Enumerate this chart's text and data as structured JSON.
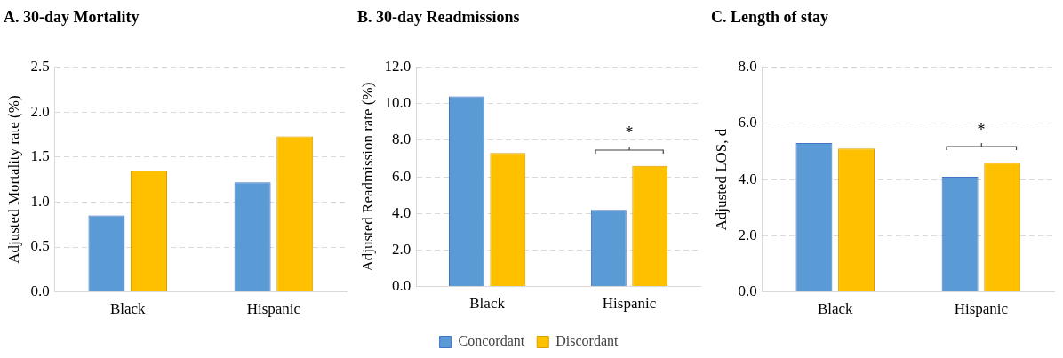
{
  "chart_data": [
    {
      "type": "bar",
      "title": "A. 30-day Mortality",
      "ylabel": "Adjusted Mortality rate (%)",
      "categories": [
        "Black",
        "Hispanic"
      ],
      "series": [
        {
          "color": "#5b9bd5",
          "values": [
            0.85,
            1.22
          ]
        },
        {
          "color": "#ffc000",
          "values": [
            1.35,
            1.73
          ]
        }
      ],
      "ylim": [
        0,
        2.5
      ],
      "yticks": [
        {
          "value": 0,
          "label": "0.0"
        },
        {
          "value": 0.5,
          "label": "0.5"
        },
        {
          "value": 1,
          "label": "1.0"
        },
        {
          "value": 1.5,
          "label": "1.5"
        },
        {
          "value": 2,
          "label": "2.0"
        },
        {
          "value": 2.5,
          "label": "2.5"
        }
      ],
      "grid": "y",
      "legend": false
    },
    {
      "type": "bar",
      "title": "B. 30-day Readmissions",
      "ylabel": "Adjusted Readmission rate (%)",
      "categories": [
        "Black",
        "Hispanic"
      ],
      "series": [
        {
          "name": "Concordant",
          "color": "#5b9bd5",
          "values": [
            10.4,
            4.2
          ]
        },
        {
          "name": "Discordant",
          "color": "#ffc000",
          "values": [
            7.3,
            6.6
          ]
        }
      ],
      "ylim": [
        0,
        12
      ],
      "yticks": [
        {
          "value": 0,
          "label": "0.0"
        },
        {
          "value": 2,
          "label": "2.0"
        },
        {
          "value": 4,
          "label": "4.0"
        },
        {
          "value": 6,
          "label": "6.0"
        },
        {
          "value": 8,
          "label": "8.0"
        },
        {
          "value": 10,
          "label": "10.0"
        },
        {
          "value": 12,
          "label": "12.0"
        }
      ],
      "grid": "y",
      "legend": "bottom",
      "annotations": [
        "*"
      ]
    },
    {
      "type": "bar",
      "title": "C. Length of stay",
      "ylabel": "Adjusted LOS, d",
      "categories": [
        "Black",
        "Hispanic"
      ],
      "series": [
        {
          "color": "#5b9bd5",
          "values": [
            5.3,
            4.1
          ]
        },
        {
          "color": "#ffc000",
          "values": [
            5.1,
            4.6
          ]
        }
      ],
      "ylim": [
        0,
        8
      ],
      "yticks": [
        {
          "value": 0,
          "label": "0.0"
        },
        {
          "value": 2,
          "label": "2.0"
        },
        {
          "value": 4,
          "label": "4.0"
        },
        {
          "value": 6,
          "label": "6.0"
        },
        {
          "value": 8,
          "label": "8.0"
        }
      ],
      "grid": "y",
      "legend": false,
      "annotations": [
        "*"
      ]
    }
  ]
}
